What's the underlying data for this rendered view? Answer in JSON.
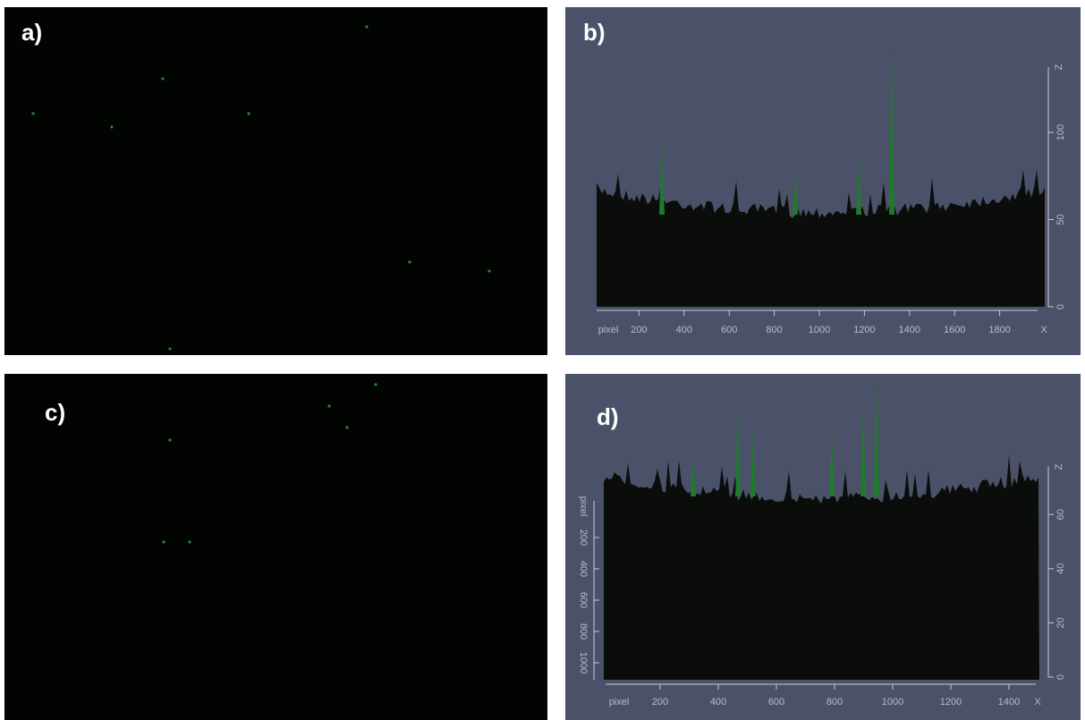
{
  "panels": [
    {
      "label": "a)"
    },
    {
      "label": "b)",
      "x_axis": {
        "title": "pixel",
        "ticks": [
          200,
          400,
          600,
          800,
          1000,
          1200,
          1400,
          1600,
          1800
        ],
        "end_label": "X"
      },
      "z_axis": {
        "ticks": [
          0,
          50,
          100
        ],
        "end_label": "Z"
      }
    },
    {
      "label": "c)"
    },
    {
      "label": "d)",
      "x_axis": {
        "title": "pixel",
        "ticks": [
          200,
          400,
          600,
          800,
          1000,
          1200,
          1400
        ],
        "end_label": "X"
      },
      "z_axis": {
        "ticks": [
          0,
          20,
          40,
          60
        ],
        "end_label": "Z"
      },
      "y_axis": {
        "title": "pixel",
        "ticks": [
          200,
          400,
          600,
          800,
          1000
        ]
      }
    }
  ]
}
